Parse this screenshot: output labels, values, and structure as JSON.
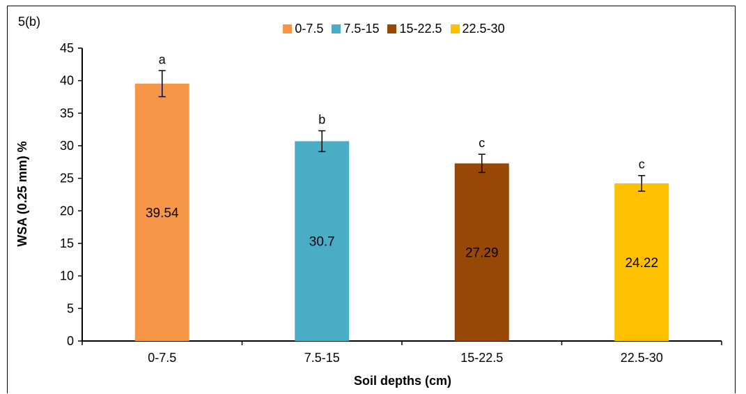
{
  "panel_label": "5(b)",
  "chart_data": {
    "type": "bar",
    "title": "",
    "xlabel": "Soil depths (cm)",
    "ylabel": "WSA (0.25 mm) %",
    "ylim": [
      0,
      45
    ],
    "yticks": [
      0,
      5,
      10,
      15,
      20,
      25,
      30,
      35,
      40,
      45
    ],
    "grid": false,
    "legend_position": "top",
    "categories": [
      "0-7.5",
      "7.5-15",
      "15-22.5",
      "22.5-30"
    ],
    "values": [
      39.54,
      30.7,
      27.29,
      24.22
    ],
    "value_labels": [
      "39.54",
      "30.7",
      "27.29",
      "24.22"
    ],
    "errors": [
      2.0,
      1.6,
      1.4,
      1.2
    ],
    "significance_letters": [
      "a",
      "b",
      "c",
      "c"
    ],
    "colors": [
      "#F79646",
      "#4BACC6",
      "#974806",
      "#FFC000"
    ],
    "legend": [
      "0-7.5",
      "7.5-15",
      "15-22.5",
      "22.5-30"
    ]
  }
}
